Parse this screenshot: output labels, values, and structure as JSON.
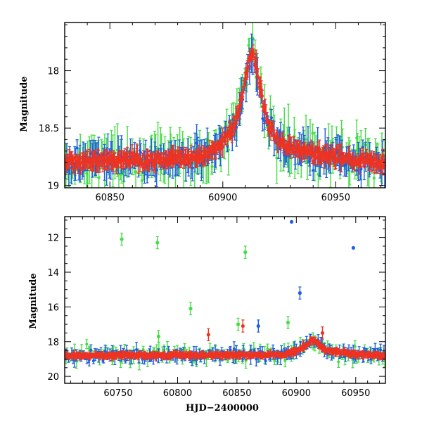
{
  "chart_data": [
    {
      "type": "scatter",
      "panel": "top",
      "title": "",
      "xlabel": "",
      "ylabel": "Magnitude",
      "xlim": [
        60830,
        60972
      ],
      "ylim": [
        19.02,
        17.58
      ],
      "y_inverted": true,
      "xticks": [
        60850,
        60900,
        60950
      ],
      "yticks": [
        18,
        18.5,
        19
      ],
      "series": [
        {
          "color": "#44dd44",
          "marker": "circle-errorbar"
        },
        {
          "color": "#1f5fe0",
          "marker": "circle-errorbar"
        },
        {
          "color": "#ee3322",
          "marker": "circle-errorbar"
        }
      ],
      "trend": {
        "x": [
          60830,
          60850,
          60870,
          60885,
          60895,
          60900,
          60905,
          60908,
          60910,
          60912,
          60913,
          60914,
          60916,
          60918,
          60920,
          60923,
          60930,
          60950,
          60970
        ],
        "y": [
          18.8,
          18.78,
          18.78,
          18.77,
          18.7,
          18.62,
          18.48,
          18.3,
          18.05,
          17.88,
          17.85,
          17.9,
          18.1,
          18.3,
          18.45,
          18.58,
          18.68,
          18.75,
          18.8
        ]
      }
    },
    {
      "type": "scatter",
      "panel": "bottom",
      "title": "",
      "xlabel": "HJD−2400000",
      "ylabel": "Magnitude",
      "xlim": [
        60705,
        60975
      ],
      "ylim": [
        20.4,
        10.8
      ],
      "y_inverted": true,
      "xticks": [
        60750,
        60800,
        60850,
        60900,
        60950
      ],
      "yticks": [
        12,
        14,
        16,
        18,
        20
      ],
      "series": [
        {
          "color": "#44dd44",
          "marker": "circle-errorbar"
        },
        {
          "color": "#1f5fe0",
          "marker": "circle-errorbar"
        },
        {
          "color": "#ee3322",
          "marker": "circle-errorbar"
        }
      ],
      "trend": {
        "x": [
          60705,
          60750,
          60800,
          60850,
          60890,
          60900,
          60908,
          60913,
          60918,
          60925,
          60950,
          60970
        ],
        "y": [
          18.8,
          18.8,
          18.78,
          18.78,
          18.75,
          18.55,
          18.2,
          17.9,
          18.1,
          18.5,
          18.72,
          18.8
        ]
      },
      "outliers": [
        {
          "series": 0,
          "x": 60753,
          "y": 12.1
        },
        {
          "series": 0,
          "x": 60783,
          "y": 12.3
        },
        {
          "series": 0,
          "x": 60857,
          "y": 12.85
        },
        {
          "series": 0,
          "x": 60811,
          "y": 16.1
        },
        {
          "series": 0,
          "x": 60851,
          "y": 17.0
        },
        {
          "series": 0,
          "x": 60893,
          "y": 16.9
        },
        {
          "series": 0,
          "x": 60784,
          "y": 17.7
        },
        {
          "series": 1,
          "x": 60896,
          "y": 11.1
        },
        {
          "series": 1,
          "x": 60948,
          "y": 12.6
        },
        {
          "series": 1,
          "x": 60903,
          "y": 15.2
        },
        {
          "series": 1,
          "x": 60868,
          "y": 17.1
        },
        {
          "series": 2,
          "x": 60855,
          "y": 17.1
        },
        {
          "series": 2,
          "x": 60826,
          "y": 17.6
        },
        {
          "series": 2,
          "x": 60922,
          "y": 17.5
        }
      ]
    }
  ]
}
